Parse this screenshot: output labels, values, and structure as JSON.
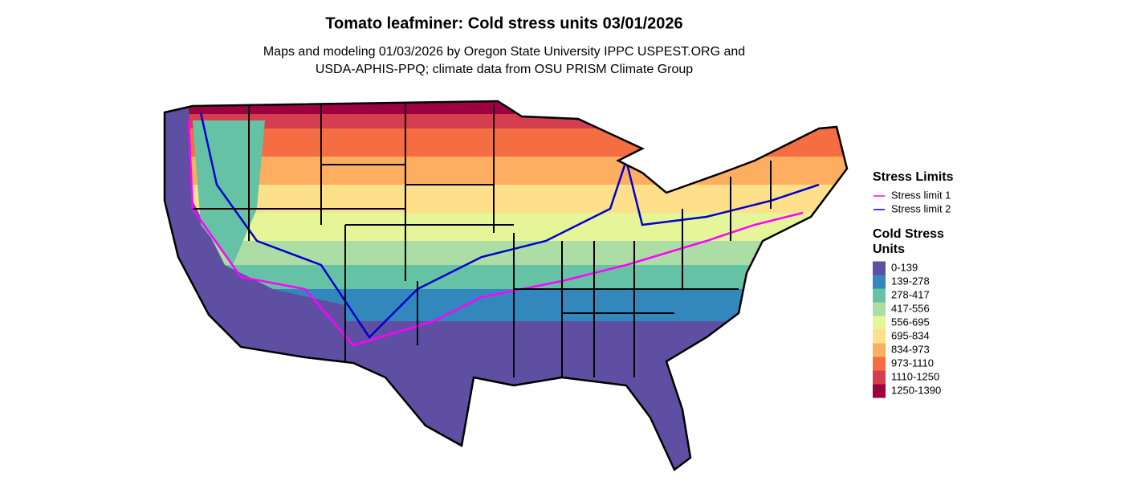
{
  "title": "Tomato leafminer: Cold stress units 03/01/2026",
  "subtitle": [
    "Maps and modeling 01/03/2026 by Oregon State University IPPC USPEST.ORG and",
    "USDA-APHIS-PPQ; climate data from OSU PRISM Climate Group"
  ],
  "legend_limits": {
    "title": "Stress Limits",
    "items": [
      {
        "label": "Stress limit 1",
        "color": "#ff00ff"
      },
      {
        "label": "Stress limit 2",
        "color": "#0000cc"
      }
    ]
  },
  "legend_units": {
    "title": [
      "Cold Stress",
      "Units"
    ],
    "items": [
      {
        "label": "0-139",
        "color": "#5e4fa2"
      },
      {
        "label": "139-278",
        "color": "#3288bd"
      },
      {
        "label": "278-417",
        "color": "#66c2a5"
      },
      {
        "label": "417-556",
        "color": "#abdda4"
      },
      {
        "label": "556-695",
        "color": "#e6f598"
      },
      {
        "label": "695-834",
        "color": "#fee08b"
      },
      {
        "label": "834-973",
        "color": "#fdae61"
      },
      {
        "label": "973-1110",
        "color": "#f46d43"
      },
      {
        "label": "1110-1250",
        "color": "#d53e4f"
      },
      {
        "label": "1250-1390",
        "color": "#9e0142"
      }
    ]
  }
}
